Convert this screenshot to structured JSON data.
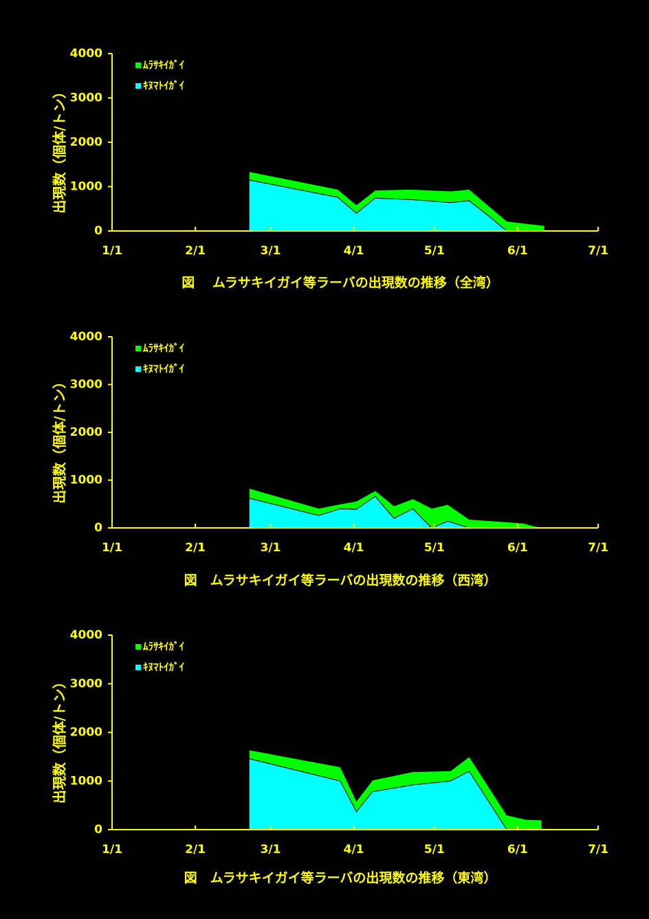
{
  "chart_data": [
    {
      "type": "area",
      "title": "図　 ムラサキイガイ等ラーバの出現数の推移（全湾）",
      "y_label": "出現数（個体/トン）",
      "x": [
        51,
        84,
        91,
        98,
        111,
        126,
        133,
        140,
        147,
        161
      ],
      "series": [
        {
          "name": "ﾑﾗｻｷｲｶﾞｲ",
          "color": "#00ff00",
          "values": [
            190,
            180,
            190,
            180,
            230,
            260,
            260,
            230,
            220,
            120
          ]
        },
        {
          "name": "ｷﾇﾏﾄｲｶﾞｲ",
          "color": "#00ffff",
          "values": [
            1150,
            760,
            400,
            740,
            710,
            640,
            680,
            350,
            0,
            0
          ]
        }
      ],
      "xlim": [
        0,
        181
      ],
      "xticks": [
        {
          "value": 0,
          "label": "1/1"
        },
        {
          "value": 31,
          "label": "2/1"
        },
        {
          "value": 59,
          "label": "3/1"
        },
        {
          "value": 90,
          "label": "4/1"
        },
        {
          "value": 120,
          "label": "5/1"
        },
        {
          "value": 151,
          "label": "6/1"
        },
        {
          "value": 181,
          "label": "7/1"
        }
      ],
      "ylim": [
        0,
        4000
      ],
      "yticks": [
        0,
        1000,
        2000,
        3000,
        4000
      ]
    },
    {
      "type": "area",
      "title": "図　ムラサキイガイ等ラーバの出現数の推移（西湾）",
      "y_label": "出現数（個体/トン）",
      "x": [
        51,
        77,
        85,
        91,
        98,
        105,
        112,
        119,
        125,
        133,
        153,
        160
      ],
      "series": [
        {
          "name": "ﾑﾗｻｷｲｶﾞｲ",
          "color": "#00ff00",
          "values": [
            210,
            150,
            100,
            170,
            120,
            260,
            210,
            410,
            350,
            180,
            100,
            0
          ]
        },
        {
          "name": "ｷﾇﾏﾄｲｶﾞｲ",
          "color": "#00ffff",
          "values": [
            620,
            260,
            400,
            390,
            660,
            200,
            400,
            0,
            140,
            0,
            0,
            0
          ]
        }
      ],
      "xlim": [
        0,
        181
      ],
      "xticks": [
        {
          "value": 0,
          "label": "1/1"
        },
        {
          "value": 31,
          "label": "2/1"
        },
        {
          "value": 59,
          "label": "3/1"
        },
        {
          "value": 90,
          "label": "4/1"
        },
        {
          "value": 120,
          "label": "5/1"
        },
        {
          "value": 151,
          "label": "6/1"
        },
        {
          "value": 181,
          "label": "7/1"
        }
      ],
      "ylim": [
        0,
        4000
      ],
      "yticks": [
        0,
        1000,
        2000,
        3000,
        4000
      ]
    },
    {
      "type": "area",
      "title": "図　ムラサキイガイ等ラーバの出現数の推移（東湾）",
      "y_label": "出現数（個体/トン）",
      "x": [
        51,
        85,
        91,
        97,
        112,
        126,
        133,
        147,
        154,
        160
      ],
      "series": [
        {
          "name": "ﾑﾗｻｷｲｶﾞｲ",
          "color": "#00ff00",
          "values": [
            180,
            290,
            220,
            240,
            270,
            210,
            300,
            300,
            210,
            200
          ]
        },
        {
          "name": "ｷﾇﾏﾄｲｶﾞｲ",
          "color": "#00ffff",
          "values": [
            1460,
            1000,
            370,
            780,
            920,
            1000,
            1200,
            0,
            0,
            0
          ]
        }
      ],
      "xlim": [
        0,
        181
      ],
      "xticks": [
        {
          "value": 0,
          "label": "1/1"
        },
        {
          "value": 31,
          "label": "2/1"
        },
        {
          "value": 59,
          "label": "3/1"
        },
        {
          "value": 90,
          "label": "4/1"
        },
        {
          "value": 120,
          "label": "5/1"
        },
        {
          "value": 151,
          "label": "6/1"
        },
        {
          "value": 181,
          "label": "7/1"
        }
      ],
      "ylim": [
        0,
        4000
      ],
      "yticks": [
        0,
        1000,
        2000,
        3000,
        4000
      ]
    }
  ]
}
